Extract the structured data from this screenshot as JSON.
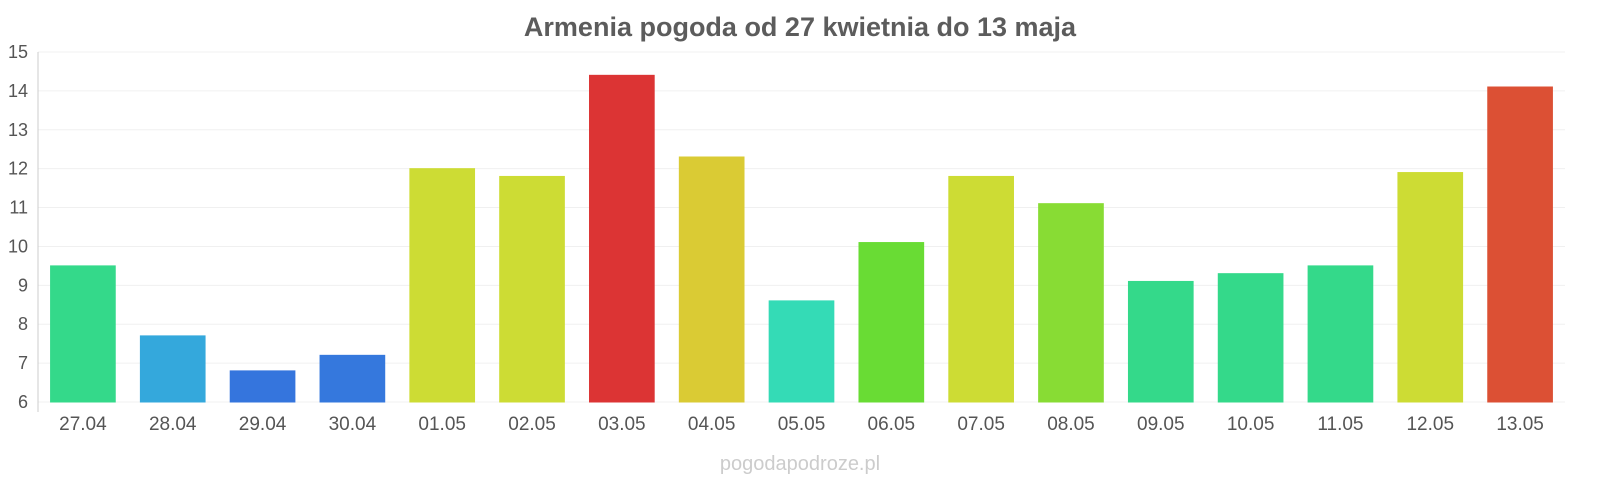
{
  "chart_data": {
    "type": "bar",
    "title": "Armenia pogoda od 27 kwietnia do 13 maja",
    "xlabel": "",
    "ylabel": "",
    "ylim": [
      6,
      15
    ],
    "yticks": [
      6,
      7,
      8,
      9,
      10,
      11,
      12,
      13,
      14,
      15
    ],
    "grid": true,
    "categories": [
      "27.04",
      "28.04",
      "29.04",
      "30.04",
      "01.05",
      "02.05",
      "03.05",
      "04.05",
      "05.05",
      "06.05",
      "07.05",
      "08.05",
      "09.05",
      "10.05",
      "11.05",
      "12.05",
      "13.05"
    ],
    "values": [
      9.5,
      7.7,
      6.8,
      7.2,
      12.0,
      11.8,
      14.4,
      12.3,
      8.6,
      10.1,
      11.8,
      11.1,
      9.1,
      9.3,
      9.5,
      11.9,
      14.1
    ],
    "colors": [
      "#34d98a",
      "#34a8dc",
      "#3575dd",
      "#3578dd",
      "#cddc34",
      "#cddc34",
      "#dc3434",
      "#dacb34",
      "#34dbb6",
      "#69dc34",
      "#cddc34",
      "#88dc34",
      "#34d98a",
      "#34d98a",
      "#34d98a",
      "#cddc34",
      "#dc5034"
    ]
  },
  "watermark": "pogodapodroze.pl"
}
